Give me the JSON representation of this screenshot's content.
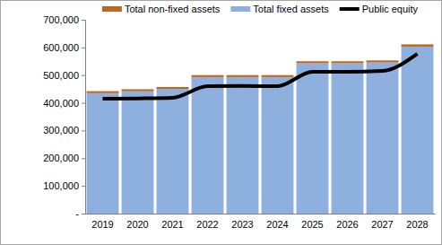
{
  "chart_data": {
    "type": "bar",
    "stacked": true,
    "grid": false,
    "legend": "top",
    "categories": [
      "2019",
      "2020",
      "2021",
      "2022",
      "2023",
      "2024",
      "2025",
      "2026",
      "2027",
      "2028"
    ],
    "series": [
      {
        "name": "Total non-fixed assets",
        "type": "bar",
        "color": "#c0651f",
        "values": [
          7000,
          7000,
          7000,
          7000,
          7000,
          7000,
          7000,
          7000,
          7000,
          8000
        ]
      },
      {
        "name": "Total fixed assets",
        "type": "bar",
        "color": "#8eb0de",
        "values": [
          435000,
          442000,
          450000,
          493000,
          493000,
          493000,
          543000,
          543000,
          546000,
          603000
        ]
      },
      {
        "name": "Public equity",
        "type": "line",
        "color": "#000000",
        "line_style": "solid",
        "values": [
          415000,
          416000,
          418000,
          460000,
          461000,
          460000,
          512000,
          512000,
          515000,
          577000
        ]
      }
    ],
    "ylim": [
      0,
      700000
    ],
    "yticks": [
      {
        "value": 0,
        "label": "-"
      },
      {
        "value": 100000,
        "label": "100,000"
      },
      {
        "value": 200000,
        "label": "200,000"
      },
      {
        "value": 300000,
        "label": "300,000"
      },
      {
        "value": 400000,
        "label": "400,000"
      },
      {
        "value": 500000,
        "label": "500,000"
      },
      {
        "value": 600000,
        "label": "600,000"
      },
      {
        "value": 700000,
        "label": "700,000"
      }
    ]
  }
}
